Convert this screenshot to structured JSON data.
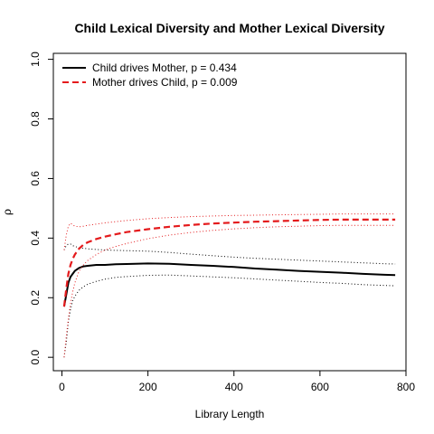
{
  "chart_data": {
    "type": "line",
    "title": "Child Lexical Diversity and Mother Lexical Diversity",
    "xlabel": "Library Length",
    "ylabel": "ρ",
    "xlim": [
      0,
      800
    ],
    "ylim": [
      0.0,
      1.0
    ],
    "x_ticks": [
      0,
      200,
      400,
      600,
      800
    ],
    "y_ticks": [
      0.0,
      0.2,
      0.4,
      0.6,
      0.8,
      1.0
    ],
    "x_tick_labels": [
      "0",
      "200",
      "400",
      "600",
      "800"
    ],
    "y_tick_labels": [
      "0.0",
      "0.2",
      "0.4",
      "0.6",
      "0.8",
      "1.0"
    ],
    "grid": false,
    "legend_position": "top-left",
    "legend": [
      {
        "label": "Child drives Mother, p = 0.434",
        "color": "#000000",
        "style": "solid"
      },
      {
        "label": "Mother drives Child, p = 0.009",
        "color": "#e41a1c",
        "style": "dashed"
      }
    ],
    "x": [
      5,
      10,
      15,
      20,
      25,
      30,
      40,
      50,
      60,
      80,
      100,
      125,
      150,
      200,
      250,
      300,
      350,
      400,
      450,
      500,
      550,
      600,
      650,
      700,
      750,
      775
    ],
    "series": [
      {
        "name": "Child drives Mother, p = 0.434",
        "color": "#000000",
        "style": "solid",
        "values": [
          0.17,
          0.21,
          0.25,
          0.27,
          0.28,
          0.29,
          0.3,
          0.305,
          0.307,
          0.31,
          0.31,
          0.312,
          0.313,
          0.315,
          0.314,
          0.31,
          0.307,
          0.303,
          0.298,
          0.294,
          0.29,
          0.287,
          0.284,
          0.28,
          0.277,
          0.276
        ]
      },
      {
        "name": "Child drives Mother upper bound",
        "color": "#000000",
        "style": "dotted",
        "values": [
          0.36,
          0.375,
          0.38,
          0.38,
          0.375,
          0.372,
          0.368,
          0.366,
          0.364,
          0.362,
          0.36,
          0.359,
          0.358,
          0.356,
          0.352,
          0.346,
          0.341,
          0.336,
          0.332,
          0.329,
          0.326,
          0.323,
          0.32,
          0.317,
          0.314,
          0.313
        ]
      },
      {
        "name": "Child drives Mother lower bound",
        "color": "#000000",
        "style": "dotted",
        "values": [
          0.0,
          0.05,
          0.12,
          0.16,
          0.19,
          0.205,
          0.225,
          0.237,
          0.245,
          0.255,
          0.262,
          0.268,
          0.271,
          0.275,
          0.276,
          0.273,
          0.27,
          0.267,
          0.263,
          0.259,
          0.255,
          0.251,
          0.248,
          0.244,
          0.241,
          0.24
        ]
      },
      {
        "name": "Mother drives Child, p = 0.009",
        "color": "#e41a1c",
        "style": "dashed",
        "values": [
          0.17,
          0.23,
          0.28,
          0.31,
          0.33,
          0.345,
          0.365,
          0.378,
          0.386,
          0.397,
          0.405,
          0.413,
          0.42,
          0.43,
          0.438,
          0.444,
          0.449,
          0.452,
          0.455,
          0.457,
          0.459,
          0.461,
          0.462,
          0.462,
          0.462,
          0.462
        ]
      },
      {
        "name": "Mother drives Child upper bound",
        "color": "#e41a1c",
        "style": "dotted",
        "values": [
          0.36,
          0.41,
          0.44,
          0.45,
          0.445,
          0.44,
          0.438,
          0.44,
          0.443,
          0.447,
          0.451,
          0.455,
          0.459,
          0.465,
          0.469,
          0.472,
          0.474,
          0.476,
          0.477,
          0.478,
          0.479,
          0.48,
          0.481,
          0.481,
          0.481,
          0.481
        ]
      },
      {
        "name": "Mother drives Child lower bound",
        "color": "#e41a1c",
        "style": "dotted",
        "values": [
          0.0,
          0.07,
          0.13,
          0.18,
          0.22,
          0.25,
          0.29,
          0.31,
          0.325,
          0.345,
          0.36,
          0.372,
          0.382,
          0.398,
          0.41,
          0.419,
          0.426,
          0.431,
          0.435,
          0.438,
          0.44,
          0.442,
          0.443,
          0.443,
          0.443,
          0.443
        ]
      }
    ]
  }
}
